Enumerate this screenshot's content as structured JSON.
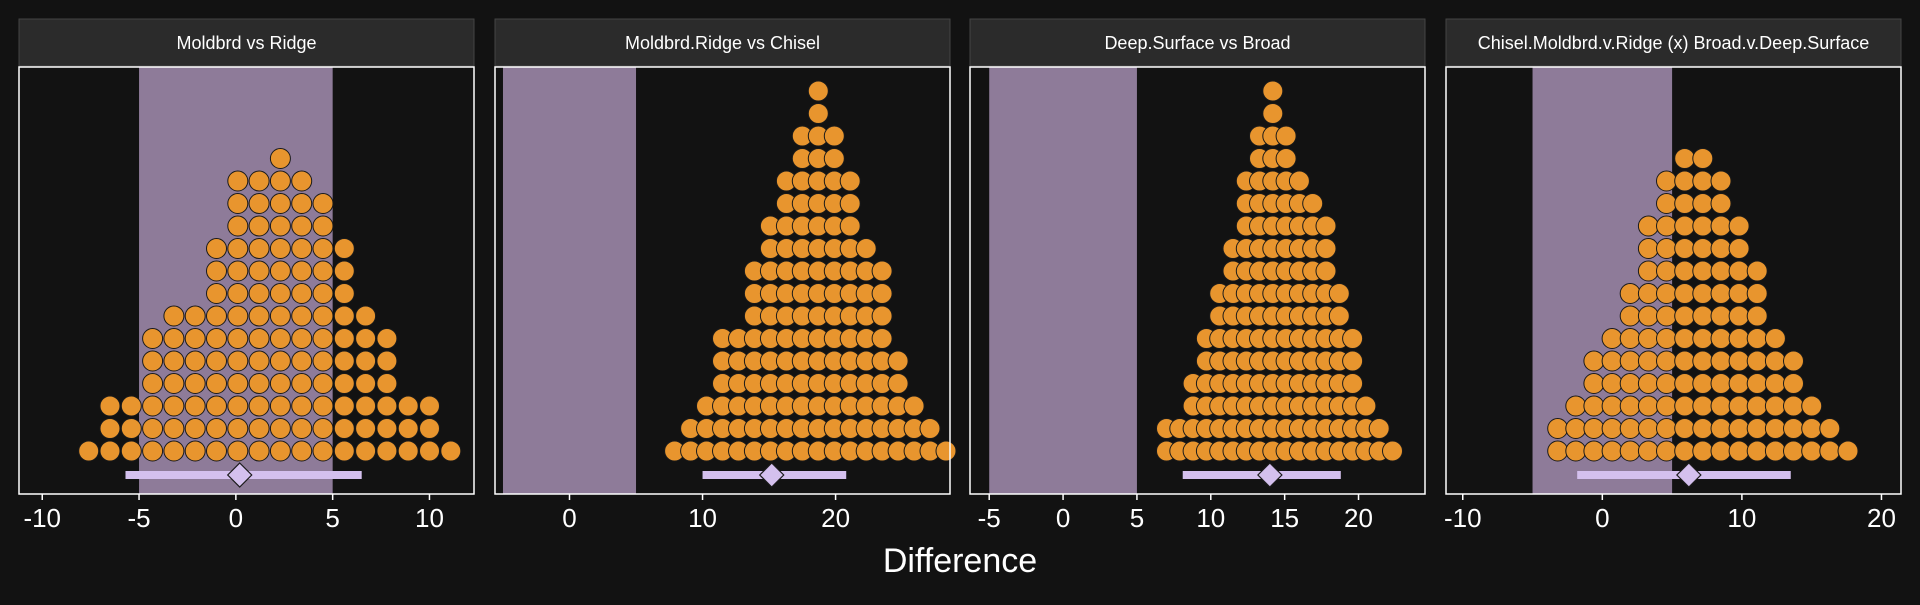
{
  "chart_data": {
    "type": "dotplot",
    "xlabel": "Difference",
    "panels": [
      {
        "title": "Moldbrd vs Ridge",
        "xlim": [
          -11.2,
          12.3
        ],
        "ticks": [
          -10,
          -5,
          0,
          5,
          10
        ],
        "rope": [
          -5,
          5
        ],
        "estimate": 0.2,
        "interval": [
          -5.7,
          6.5
        ],
        "dots": {
          "x_start": -7.6,
          "x_step": 1.1,
          "counts": [
            1,
            3,
            3,
            6,
            7,
            7,
            10,
            13,
            13,
            14,
            13,
            12,
            10,
            7,
            6,
            3,
            3,
            1
          ]
        }
      },
      {
        "title": "Moldbrd.Ridge vs Chisel",
        "xlim": [
          -5.6,
          28.6
        ],
        "ticks": [
          0,
          10,
          20
        ],
        "rope": [
          -5,
          5
        ],
        "estimate": 15.2,
        "interval": [
          10,
          20.8
        ],
        "dots": {
          "x_start": 7.9,
          "x_step": 1.2,
          "counts": [
            1,
            2,
            3,
            6,
            6,
            9,
            11,
            13,
            15,
            17,
            15,
            13,
            10,
            9,
            5,
            3,
            2,
            1
          ]
        }
      },
      {
        "title": "Deep.Surface vs Broad",
        "xlim": [
          -6.3,
          24.5
        ],
        "ticks": [
          -5,
          0,
          5,
          10,
          15,
          20
        ],
        "rope": [
          -5,
          5
        ],
        "estimate": 14.0,
        "interval": [
          8.1,
          18.8
        ],
        "dots": {
          "x_start": 7.0,
          "x_step": 0.9,
          "counts": [
            2,
            2,
            4,
            6,
            8,
            10,
            13,
            15,
            17,
            15,
            13,
            12,
            11,
            8,
            6,
            3,
            2,
            1
          ]
        }
      },
      {
        "title": "Chisel.Moldbrd.v.Ridge (x) Broad.v.Deep.Surface",
        "xlim": [
          -11.2,
          21.4
        ],
        "ticks": [
          -10,
          0,
          10,
          20
        ],
        "rope": [
          -5,
          5
        ],
        "estimate": 6.2,
        "interval": [
          -1.8,
          13.5
        ],
        "dots": {
          "x_start": -3.2,
          "x_step": 1.3,
          "counts": [
            2,
            3,
            5,
            6,
            8,
            11,
            13,
            14,
            14,
            13,
            11,
            9,
            6,
            5,
            3,
            2,
            1
          ]
        }
      }
    ]
  },
  "colors": {
    "background": "#121212",
    "panel": "#121212",
    "strip": "#2b2b2b",
    "rope": "#8e7b99",
    "dot": "#e8952e",
    "interval": "#d4c0ee",
    "text": "#ffffff"
  }
}
